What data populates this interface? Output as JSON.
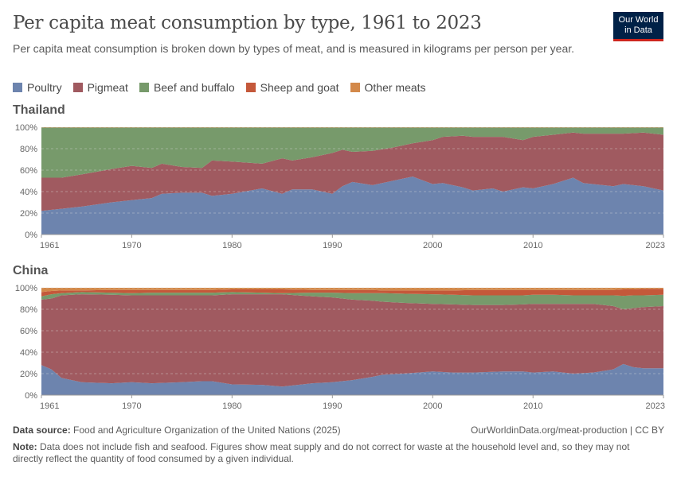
{
  "title": "Per capita meat consumption by type, 1961 to 2023",
  "subtitle": "Per capita meat consumption is broken down by types of meat, and is measured in kilograms per person per year.",
  "logo": {
    "line1": "Our World",
    "line2": "in Data"
  },
  "colors": {
    "Poultry": "#6D84AE",
    "Pigmeat": "#A05A60",
    "Beef and buffalo": "#779A6B",
    "Sheep and goat": "#C4583A",
    "Other meats": "#D3894A"
  },
  "legend": [
    "Poultry",
    "Pigmeat",
    "Beef and buffalo",
    "Sheep and goat",
    "Other meats"
  ],
  "chart_data": [
    {
      "type": "area",
      "stacked": "relative",
      "title": "Thailand",
      "ylim": [
        0,
        100
      ],
      "yticks": [
        "0%",
        "20%",
        "40%",
        "60%",
        "80%",
        "100%"
      ],
      "xticks": [
        "1961",
        "1970",
        "1980",
        "1990",
        "2000",
        "2010",
        "2023"
      ],
      "grid": true,
      "x": [
        1961,
        1963,
        1965,
        1968,
        1970,
        1972,
        1973,
        1975,
        1977,
        1978,
        1980,
        1983,
        1985,
        1986,
        1988,
        1990,
        1991,
        1992,
        1994,
        1996,
        1998,
        2000,
        2001,
        2003,
        2004,
        2006,
        2007,
        2009,
        2010,
        2012,
        2014,
        2015,
        2018,
        2019,
        2021,
        2023
      ],
      "series": [
        {
          "name": "Poultry",
          "values": [
            22,
            24,
            26,
            30,
            32,
            34,
            38,
            39,
            39,
            36,
            38,
            43,
            38,
            42,
            42,
            38,
            45,
            49,
            46,
            50,
            54,
            47,
            48,
            44,
            41,
            43,
            40,
            44,
            43,
            47,
            53,
            48,
            45,
            47,
            45,
            41
          ]
        },
        {
          "name": "Pigmeat",
          "values": [
            31,
            29,
            30,
            31,
            32,
            28,
            28,
            24,
            23,
            33,
            30,
            23,
            33,
            27,
            30,
            38,
            34,
            28,
            32,
            31,
            31,
            41,
            43,
            48,
            50,
            48,
            51,
            44,
            48,
            46,
            42,
            46,
            49,
            47,
            50,
            52
          ]
        },
        {
          "name": "Beef and buffalo",
          "values": [
            46.6,
            46.6,
            43.6,
            38.6,
            35.6,
            37.6,
            33.6,
            36.6,
            37.6,
            30.6,
            31.6,
            33.6,
            28.6,
            30.6,
            27.6,
            23.6,
            20.6,
            22.6,
            21.6,
            18.6,
            14.6,
            11.6,
            8.6,
            7.6,
            8.6,
            8.6,
            8.6,
            11.6,
            8.6,
            6.6,
            4.6,
            5.6,
            5.6,
            5.6,
            4.6,
            6.6
          ]
        },
        {
          "name": "Sheep and goat",
          "values": [
            0.1,
            0.1,
            0.1,
            0.1,
            0.1,
            0.1,
            0.1,
            0.1,
            0.1,
            0.1,
            0.1,
            0.1,
            0.1,
            0.1,
            0.1,
            0.1,
            0.1,
            0.1,
            0.1,
            0.1,
            0.1,
            0.1,
            0.1,
            0.1,
            0.1,
            0.1,
            0.1,
            0.1,
            0.1,
            0.1,
            0.1,
            0.1,
            0.1,
            0.1,
            0.1,
            0.1
          ]
        },
        {
          "name": "Other meats",
          "values": [
            0.3,
            0.3,
            0.3,
            0.3,
            0.3,
            0.3,
            0.3,
            0.3,
            0.3,
            0.3,
            0.3,
            0.3,
            0.3,
            0.3,
            0.3,
            0.3,
            0.3,
            0.3,
            0.3,
            0.3,
            0.3,
            0.3,
            0.3,
            0.3,
            0.3,
            0.3,
            0.3,
            0.3,
            0.3,
            0.3,
            0.3,
            0.3,
            0.3,
            0.3,
            0.3,
            0.3
          ]
        }
      ]
    },
    {
      "type": "area",
      "stacked": "relative",
      "title": "China",
      "ylim": [
        0,
        100
      ],
      "yticks": [
        "0%",
        "20%",
        "40%",
        "60%",
        "80%",
        "100%"
      ],
      "xticks": [
        "1961",
        "1970",
        "1980",
        "1990",
        "2000",
        "2010",
        "2023"
      ],
      "grid": true,
      "x": [
        1961,
        1962,
        1963,
        1965,
        1968,
        1970,
        1972,
        1975,
        1977,
        1978,
        1980,
        1983,
        1985,
        1988,
        1990,
        1992,
        1994,
        1995,
        1997,
        2000,
        2002,
        2004,
        2007,
        2009,
        2010,
        2012,
        2014,
        2016,
        2018,
        2019,
        2020,
        2021,
        2023
      ],
      "series": [
        {
          "name": "Poultry",
          "values": [
            28,
            24,
            16,
            12,
            11,
            12,
            11,
            12,
            13,
            13,
            10,
            9.5,
            8,
            11,
            12,
            14,
            17,
            19,
            20,
            22,
            21,
            21,
            22,
            22,
            21,
            22,
            20,
            21,
            24,
            29,
            26,
            25,
            25
          ]
        },
        {
          "name": "Pigmeat",
          "values": [
            61,
            66,
            77,
            82,
            82.5,
            81,
            82,
            81,
            80,
            80,
            84,
            84.5,
            86,
            81,
            79,
            75,
            71,
            68,
            66,
            63,
            63.5,
            63,
            62,
            62.5,
            64,
            63,
            65,
            64,
            59,
            51,
            55,
            57,
            58
          ]
        },
        {
          "name": "Beef and buffalo",
          "values": [
            3,
            4,
            2,
            2,
            2,
            2,
            2.5,
            2.5,
            2.5,
            2.5,
            2,
            1.5,
            1,
            3.5,
            4.5,
            6,
            7,
            8,
            8.5,
            9,
            9,
            9,
            9,
            8.5,
            8.5,
            8.5,
            8,
            8,
            10,
            12.5,
            12,
            11,
            10.5
          ]
        },
        {
          "name": "Sheep and goat",
          "values": [
            4,
            3,
            2.5,
            1.5,
            2.5,
            3,
            2.5,
            2.5,
            2.5,
            2.5,
            2.5,
            3,
            3.5,
            2.5,
            2.5,
            3,
            3,
            2.5,
            3,
            3.5,
            4,
            5,
            5,
            5,
            4.5,
            4.5,
            5,
            5,
            5,
            6,
            5.5,
            6,
            5.5
          ]
        },
        {
          "name": "Other meats",
          "values": [
            4,
            3,
            2.5,
            2.5,
            2,
            2,
            2,
            2,
            2,
            2,
            1.5,
            1.5,
            1.5,
            2,
            2,
            2,
            2,
            2.5,
            2.5,
            2.5,
            2.5,
            2,
            2,
            2,
            2,
            2,
            2,
            2,
            2,
            1.5,
            1.5,
            1,
            1
          ]
        }
      ]
    }
  ],
  "footer": {
    "source_label": "Data source:",
    "source": "Food and Agriculture Organization of the United Nations (2025)",
    "url": "OurWorldinData.org/meat-production | CC BY",
    "note_label": "Note:",
    "note": "Data does not include fish and seafood. Figures show meat supply and do not correct for waste at the household level and, so they may not directly reflect the quantity of food consumed by a given individual."
  }
}
